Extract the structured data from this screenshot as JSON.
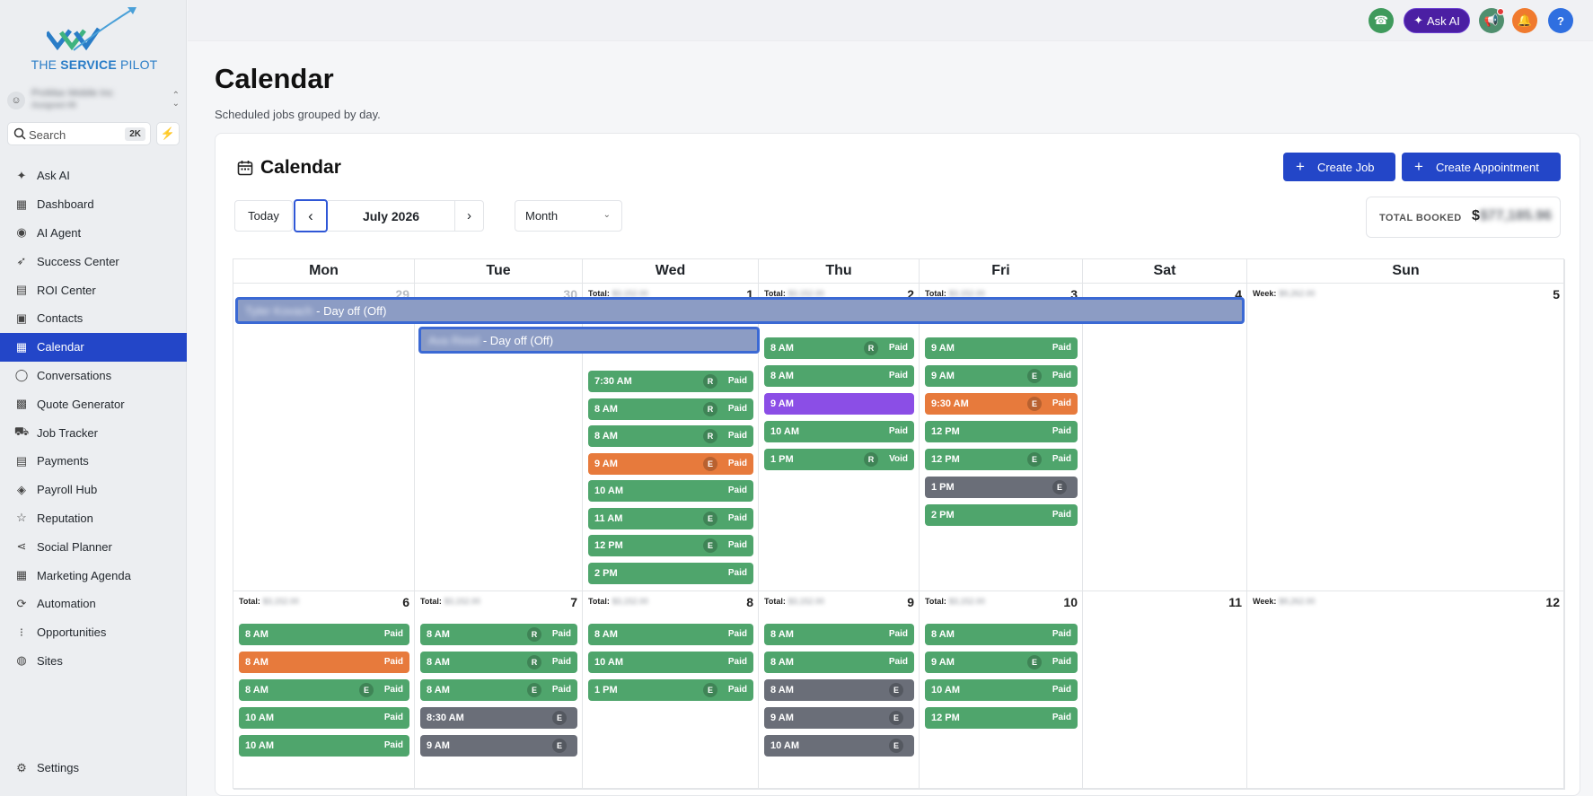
{
  "brand": {
    "logo_text_a": "THE ",
    "logo_text_b": "SERVICE",
    "logo_text_c": " PILOT"
  },
  "account": {
    "name": "ProMax Mobile Inc",
    "sub": "Assigned #8"
  },
  "search": {
    "placeholder": "Search",
    "shortcut": "2K"
  },
  "nav": [
    {
      "label": "Ask AI",
      "icon": "sparkle-icon"
    },
    {
      "label": "Dashboard",
      "icon": "grid-icon"
    },
    {
      "label": "AI Agent",
      "icon": "brain-icon"
    },
    {
      "label": "Success Center",
      "icon": "rocket-icon"
    },
    {
      "label": "ROI Center",
      "icon": "chart-icon"
    },
    {
      "label": "Contacts",
      "icon": "contacts-icon"
    },
    {
      "label": "Calendar",
      "icon": "calendar-icon",
      "active": true
    },
    {
      "label": "Conversations",
      "icon": "chat-icon"
    },
    {
      "label": "Quote Generator",
      "icon": "calculator-icon"
    },
    {
      "label": "Job Tracker",
      "icon": "truck-icon"
    },
    {
      "label": "Payments",
      "icon": "receipt-icon"
    },
    {
      "label": "Payroll Hub",
      "icon": "wallet-icon"
    },
    {
      "label": "Reputation",
      "icon": "star-icon"
    },
    {
      "label": "Social Planner",
      "icon": "share-icon"
    },
    {
      "label": "Marketing Agenda",
      "icon": "calendar-grid-icon"
    },
    {
      "label": "Automation",
      "icon": "automation-icon"
    },
    {
      "label": "Opportunities",
      "icon": "funnel-icon"
    },
    {
      "label": "Sites",
      "icon": "globe-icon"
    }
  ],
  "settings_label": "Settings",
  "topbar": {
    "ask_ai": "Ask AI",
    "help": "?"
  },
  "page": {
    "title": "Calendar",
    "subtitle": "Scheduled jobs grouped by day."
  },
  "card": {
    "title": "Calendar",
    "create_job": "Create Job",
    "create_appointment": "Create Appointment",
    "today": "Today",
    "month_label": "July 2026",
    "view": "Month",
    "total_booked_label": "TOTAL BOOKED",
    "total_booked_value": "$77,185.96"
  },
  "weekdays": [
    "Mon",
    "Tue",
    "Wed",
    "Thu",
    "Fri",
    "Sat",
    "Sun"
  ],
  "blurred_amount": "$3,152.00",
  "week_blurred_amount": "$9,262.00",
  "total_label": "Total:",
  "week_label": "Week:",
  "weeks": [
    {
      "days": [
        {
          "num": "29",
          "muted": true
        },
        {
          "num": "30",
          "muted": true
        },
        {
          "num": "1",
          "total": true,
          "events": [
            {
              "time": "7:30 AM",
              "badge": "R",
              "status": "Paid",
              "color": "g"
            },
            {
              "time": "8 AM",
              "badge": "R",
              "status": "Paid",
              "color": "g"
            },
            {
              "time": "8 AM",
              "badge": "R",
              "status": "Paid",
              "color": "g"
            },
            {
              "time": "9 AM",
              "badge": "E",
              "status": "Paid",
              "color": "o"
            },
            {
              "time": "10 AM",
              "badge": "",
              "status": "Paid",
              "color": "g"
            },
            {
              "time": "11 AM",
              "badge": "E",
              "status": "Paid",
              "color": "g"
            },
            {
              "time": "12 PM",
              "badge": "E",
              "status": "Paid",
              "color": "g"
            },
            {
              "time": "2 PM",
              "badge": "",
              "status": "Paid",
              "color": "g"
            }
          ]
        },
        {
          "num": "2",
          "total": true,
          "events": [
            {
              "time": "8 AM",
              "badge": "R",
              "status": "Paid",
              "color": "g"
            },
            {
              "time": "8 AM",
              "badge": "",
              "status": "Paid",
              "color": "g"
            },
            {
              "time": "9 AM",
              "badge": "",
              "status": "",
              "color": "p"
            },
            {
              "time": "10 AM",
              "badge": "",
              "status": "Paid",
              "color": "g"
            },
            {
              "time": "1 PM",
              "badge": "R",
              "status": "Void",
              "color": "g"
            }
          ]
        },
        {
          "num": "3",
          "total": true,
          "events": [
            {
              "time": "9 AM",
              "badge": "",
              "status": "Paid",
              "color": "g"
            },
            {
              "time": "9 AM",
              "badge": "E",
              "status": "Paid",
              "color": "g"
            },
            {
              "time": "9:30 AM",
              "badge": "E",
              "status": "Paid",
              "color": "o"
            },
            {
              "time": "12 PM",
              "badge": "",
              "status": "Paid",
              "color": "g"
            },
            {
              "time": "12 PM",
              "badge": "E",
              "status": "Paid",
              "color": "g"
            },
            {
              "time": "1 PM",
              "badge": "E",
              "status": "",
              "color": "d"
            },
            {
              "time": "2 PM",
              "badge": "",
              "status": "Paid",
              "color": "g"
            }
          ]
        },
        {
          "num": "4"
        },
        {
          "num": "5",
          "week": true
        }
      ],
      "dayoffs": [
        {
          "name": "Tyler Kovach",
          "label": "- Day off (Off)"
        },
        {
          "name": "Ava Reed",
          "label": "- Day off (Off)"
        }
      ]
    },
    {
      "days": [
        {
          "num": "6",
          "total": true,
          "events": [
            {
              "time": "8 AM",
              "badge": "",
              "status": "Paid",
              "color": "g"
            },
            {
              "time": "8 AM",
              "badge": "",
              "status": "Paid",
              "color": "o"
            },
            {
              "time": "8 AM",
              "badge": "E",
              "status": "Paid",
              "color": "g"
            },
            {
              "time": "10 AM",
              "badge": "",
              "status": "Paid",
              "color": "g"
            },
            {
              "time": "10 AM",
              "badge": "",
              "status": "Paid",
              "color": "g"
            }
          ]
        },
        {
          "num": "7",
          "total": true,
          "events": [
            {
              "time": "8 AM",
              "badge": "R",
              "status": "Paid",
              "color": "g"
            },
            {
              "time": "8 AM",
              "badge": "R",
              "status": "Paid",
              "color": "g"
            },
            {
              "time": "8 AM",
              "badge": "E",
              "status": "Paid",
              "color": "g"
            },
            {
              "time": "8:30 AM",
              "badge": "E",
              "status": "",
              "color": "d"
            },
            {
              "time": "9 AM",
              "badge": "E",
              "status": "",
              "color": "d"
            }
          ]
        },
        {
          "num": "8",
          "total": true,
          "events": [
            {
              "time": "8 AM",
              "badge": "",
              "status": "Paid",
              "color": "g"
            },
            {
              "time": "10 AM",
              "badge": "",
              "status": "Paid",
              "color": "g"
            },
            {
              "time": "1 PM",
              "badge": "E",
              "status": "Paid",
              "color": "g"
            }
          ]
        },
        {
          "num": "9",
          "total": true,
          "events": [
            {
              "time": "8 AM",
              "badge": "",
              "status": "Paid",
              "color": "g"
            },
            {
              "time": "8 AM",
              "badge": "",
              "status": "Paid",
              "color": "g"
            },
            {
              "time": "8 AM",
              "badge": "E",
              "status": "",
              "color": "d"
            },
            {
              "time": "9 AM",
              "badge": "E",
              "status": "",
              "color": "d"
            },
            {
              "time": "10 AM",
              "badge": "E",
              "status": "",
              "color": "d"
            }
          ]
        },
        {
          "num": "10",
          "total": true,
          "events": [
            {
              "time": "8 AM",
              "badge": "",
              "status": "Paid",
              "color": "g"
            },
            {
              "time": "9 AM",
              "badge": "E",
              "status": "Paid",
              "color": "g"
            },
            {
              "time": "10 AM",
              "badge": "",
              "status": "Paid",
              "color": "g"
            },
            {
              "time": "12 PM",
              "badge": "",
              "status": "Paid",
              "color": "g"
            }
          ]
        },
        {
          "num": "11"
        },
        {
          "num": "12",
          "week": true
        }
      ]
    }
  ]
}
